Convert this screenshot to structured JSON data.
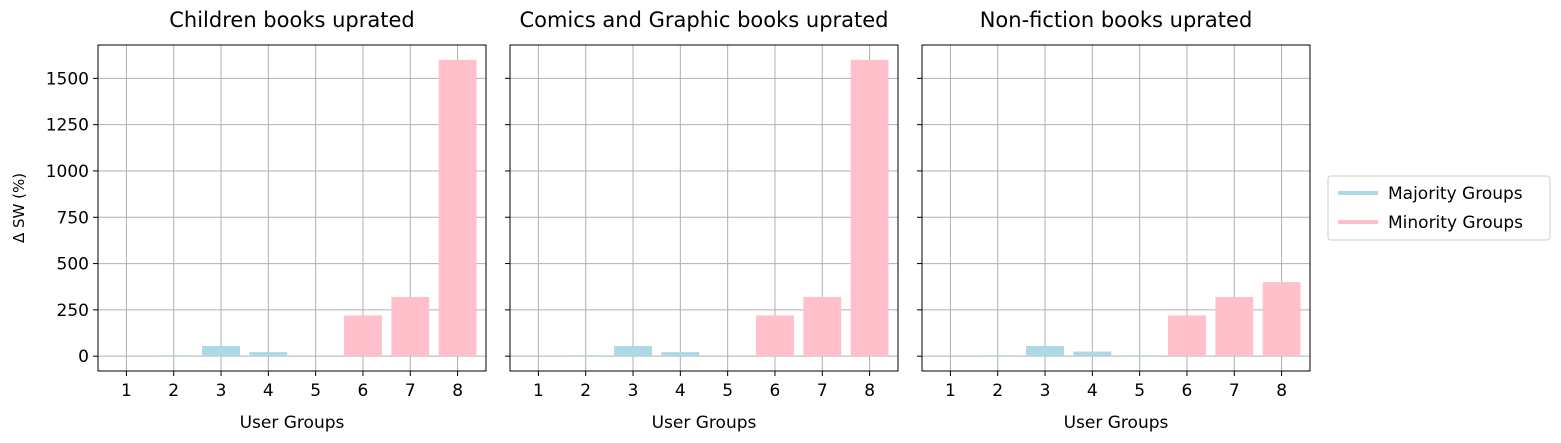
{
  "chart_data": [
    {
      "type": "bar",
      "title": "Children books uprated",
      "xlabel": "User Groups",
      "ylabel": "Δ SW (%)",
      "categories": [
        "1",
        "2",
        "3",
        "4",
        "5",
        "6",
        "7",
        "8"
      ],
      "values": [
        0,
        5,
        55,
        22,
        0,
        220,
        320,
        1600
      ],
      "bar_groups": [
        "Majority Groups",
        "Majority Groups",
        "Majority Groups",
        "Majority Groups",
        "Majority Groups",
        "Minority Groups",
        "Minority Groups",
        "Minority Groups"
      ],
      "ylim": [
        -80,
        1680
      ],
      "yticks": [
        0,
        250,
        500,
        750,
        1000,
        1250,
        1500
      ],
      "grid": true
    },
    {
      "type": "bar",
      "title": "Comics and Graphic books uprated",
      "xlabel": "User Groups",
      "ylabel": "",
      "categories": [
        "1",
        "2",
        "3",
        "4",
        "5",
        "6",
        "7",
        "8"
      ],
      "values": [
        0,
        5,
        55,
        22,
        0,
        220,
        320,
        1600
      ],
      "bar_groups": [
        "Majority Groups",
        "Majority Groups",
        "Majority Groups",
        "Majority Groups",
        "Majority Groups",
        "Minority Groups",
        "Minority Groups",
        "Minority Groups"
      ],
      "ylim": [
        -80,
        1680
      ],
      "yticks": [
        0,
        250,
        500,
        750,
        1000,
        1250,
        1500
      ],
      "grid": true
    },
    {
      "type": "bar",
      "title": "Non-fiction books uprated",
      "xlabel": "User Groups",
      "ylabel": "",
      "categories": [
        "1",
        "2",
        "3",
        "4",
        "5",
        "6",
        "7",
        "8"
      ],
      "values": [
        0,
        5,
        55,
        25,
        5,
        220,
        320,
        400
      ],
      "bar_groups": [
        "Majority Groups",
        "Majority Groups",
        "Majority Groups",
        "Majority Groups",
        "Majority Groups",
        "Minority Groups",
        "Minority Groups",
        "Minority Groups"
      ],
      "ylim": [
        -80,
        1680
      ],
      "yticks": [
        0,
        250,
        500,
        750,
        1000,
        1250,
        1500
      ],
      "grid": true
    }
  ],
  "legend": {
    "placement": "right",
    "entries": [
      {
        "label": "Majority Groups",
        "color": "#add8e6"
      },
      {
        "label": "Minority Groups",
        "color": "#ffc0cb"
      }
    ]
  },
  "colors": {
    "Majority Groups": "#add8e6",
    "Minority Groups": "#ffc0cb",
    "grid": "#b0b0b0",
    "axes": "#000000"
  }
}
